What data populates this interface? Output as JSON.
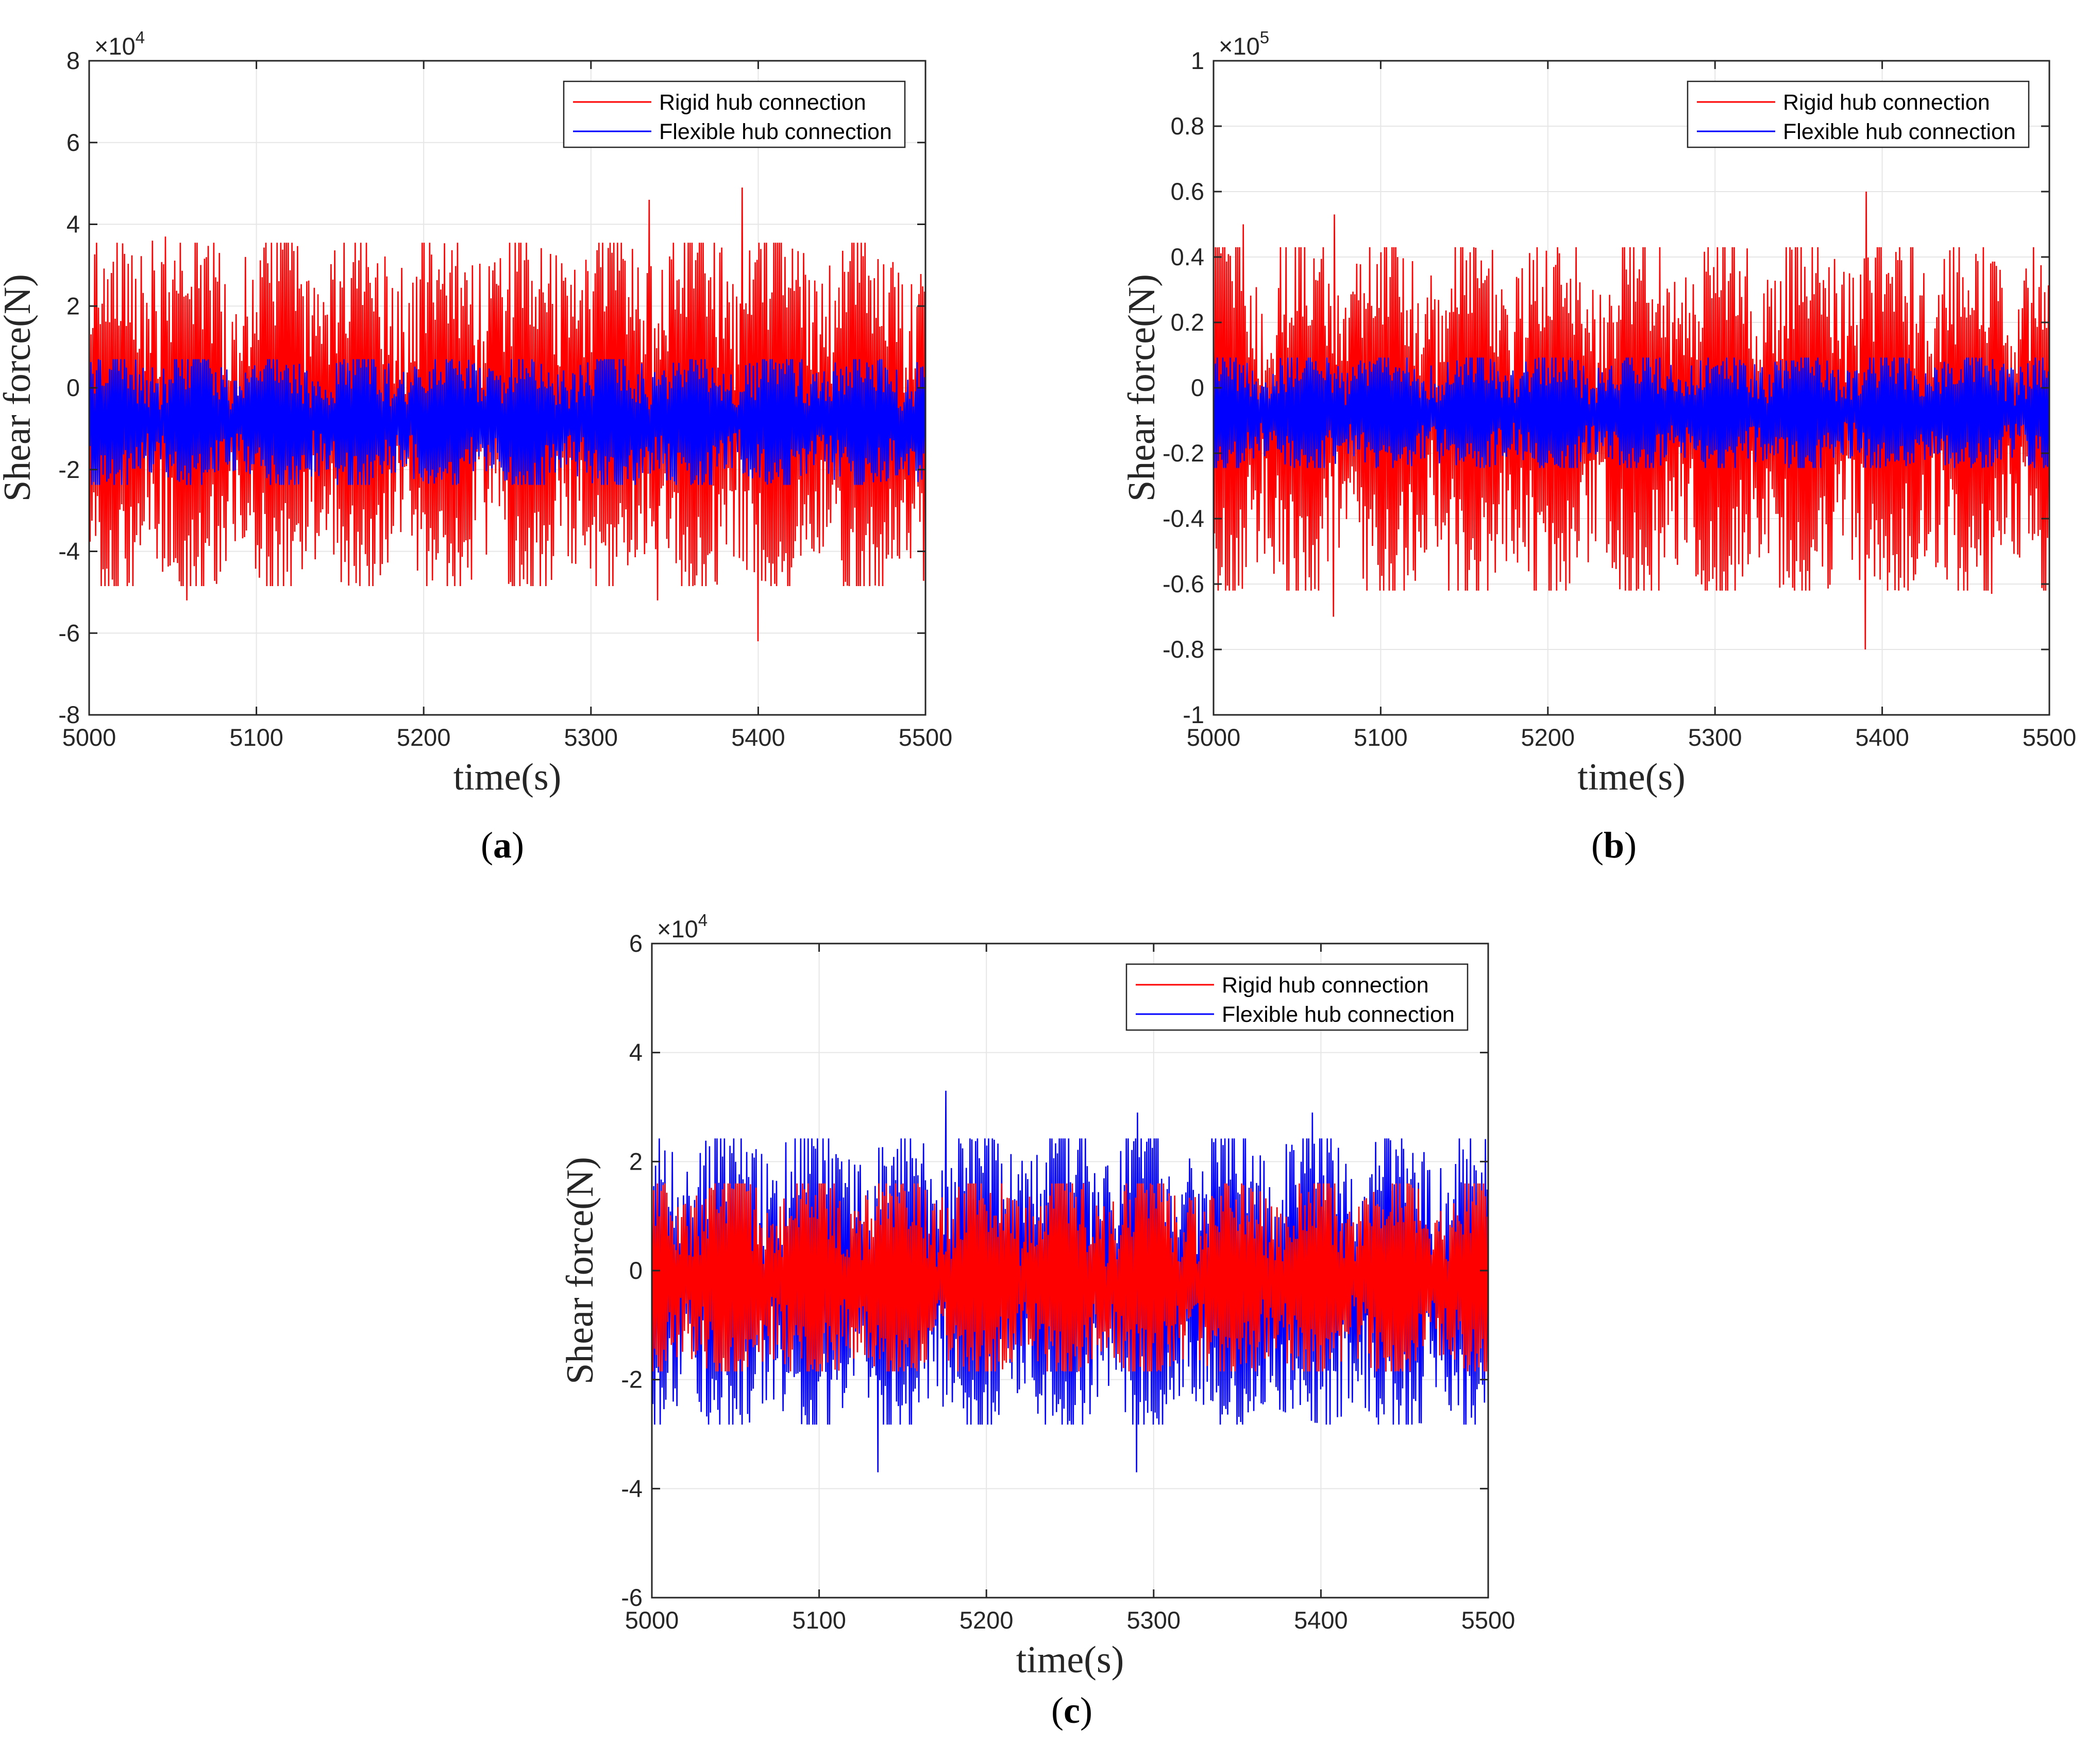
{
  "chart_data": [
    {
      "type": "line",
      "caption_letter": "a",
      "xlabel": "time(s)",
      "ylabel": "Shear force(N)",
      "exponent": "4",
      "xlim": [
        5000,
        5500
      ],
      "ylim": [
        -8,
        8
      ],
      "x_ticks": [
        "5000",
        "5100",
        "5200",
        "5300",
        "5400",
        "5500"
      ],
      "y_ticks": [
        "-8",
        "-6",
        "-4",
        "-2",
        "0",
        "2",
        "4",
        "6",
        "8"
      ],
      "legend_position": "top-right",
      "series": [
        {
          "name": "Rigid hub connection",
          "color": "#ff0000",
          "approx_mean": -0.8,
          "approx_range": [
            -6.2,
            5.0
          ],
          "peaks": [
            [
              5037,
              3.6
            ],
            [
              5045,
              3.7
            ],
            [
              5058,
              -5.2
            ],
            [
              5078,
              3.3
            ],
            [
              5335,
              4.6
            ],
            [
              5340,
              -5.2
            ],
            [
              5390,
              4.9
            ],
            [
              5400,
              -6.2
            ],
            [
              5455,
              3.1
            ]
          ]
        },
        {
          "name": "Flexible hub connection",
          "color": "#0000ff",
          "approx_mean": -0.8,
          "approx_range": [
            -2.9,
            1.2
          ]
        }
      ]
    },
    {
      "type": "line",
      "caption_letter": "b",
      "xlabel": "time(s)",
      "ylabel": "Shear force(N)",
      "exponent": "5",
      "xlim": [
        5000,
        5500
      ],
      "ylim": [
        -1,
        1
      ],
      "x_ticks": [
        "5000",
        "5100",
        "5200",
        "5300",
        "5400",
        "5500"
      ],
      "y_ticks": [
        "-1",
        "-0.8",
        "-0.6",
        "-0.4",
        "-0.2",
        "0",
        "0.2",
        "0.4",
        "0.6",
        "0.8",
        "1"
      ],
      "legend_position": "top-right",
      "series": [
        {
          "name": "Rigid hub connection",
          "color": "#ff0000",
          "approx_mean": -0.08,
          "approx_range": [
            -0.8,
            0.6
          ],
          "peaks": [
            [
              5017,
              0.5
            ],
            [
              5072,
              0.53
            ],
            [
              5072,
              -0.7
            ],
            [
              5140,
              -0.62
            ],
            [
              5390,
              0.6
            ],
            [
              5390,
              -0.8
            ],
            [
              5465,
              -0.63
            ]
          ]
        },
        {
          "name": "Flexible hub connection",
          "color": "#0000ff",
          "approx_mean": -0.08,
          "approx_range": [
            -0.3,
            0.15
          ]
        }
      ]
    },
    {
      "type": "line",
      "caption_letter": "c",
      "xlabel": "time(s)",
      "ylabel": "Shear force(N)",
      "exponent": "4",
      "xlim": [
        5000,
        5500
      ],
      "ylim": [
        -6,
        6
      ],
      "x_ticks": [
        "5000",
        "5100",
        "5200",
        "5300",
        "5400",
        "5500"
      ],
      "y_ticks": [
        "-6",
        "-4",
        "-2",
        "0",
        "2",
        "4",
        "6"
      ],
      "legend_position": "top-right",
      "series": [
        {
          "name": "Rigid hub connection",
          "color": "#ff0000",
          "approx_mean": -0.2,
          "approx_range": [
            -2.4,
            2.2
          ]
        },
        {
          "name": "Flexible hub connection",
          "color": "#0000ff",
          "approx_mean": -0.2,
          "approx_range": [
            -3.7,
            3.3
          ],
          "peaks": [
            [
              5175,
              3.3
            ],
            [
              5135,
              -3.7
            ],
            [
              5290,
              -3.7
            ],
            [
              5290,
              2.9
            ],
            [
              5395,
              2.9
            ]
          ]
        }
      ]
    }
  ]
}
